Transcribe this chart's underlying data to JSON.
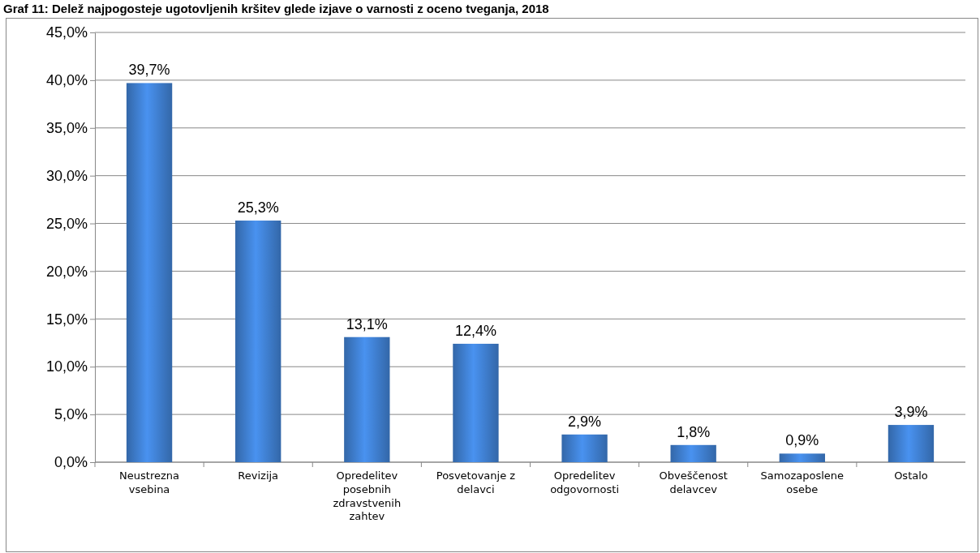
{
  "chart_data": {
    "type": "bar",
    "title": "Graf 11: Delež najpogosteje ugotovljenih kršitev glede izjave o varnosti z oceno tveganja, 2018",
    "categories": [
      "Neustrezna vsebina",
      "Revizija",
      "Opredelitev posebnih zdravstvenih zahtev",
      "Posvetovanje z delavci",
      "Opredelitev odgovornosti",
      "Obveščenost delavcev",
      "Samozaposlene osebe",
      "Ostalo"
    ],
    "values": [
      39.7,
      25.3,
      13.1,
      12.4,
      2.9,
      1.8,
      0.9,
      3.9
    ],
    "value_labels": [
      "39,7%",
      "25,3%",
      "13,1%",
      "12,4%",
      "2,9%",
      "1,8%",
      "0,9%",
      "3,9%"
    ],
    "color": "#3f7fd0",
    "ylim": [
      0,
      45
    ],
    "yticks": [
      {
        "value": 0,
        "label": "0,0%"
      },
      {
        "value": 5,
        "label": "5,0%"
      },
      {
        "value": 10,
        "label": "10,0%"
      },
      {
        "value": 15,
        "label": "15,0%"
      },
      {
        "value": 20,
        "label": "20,0%"
      },
      {
        "value": 25,
        "label": "25,0%"
      },
      {
        "value": 30,
        "label": "30,0%"
      },
      {
        "value": 35,
        "label": "35,0%"
      },
      {
        "value": 40,
        "label": "40,0%"
      },
      {
        "value": 45,
        "label": "45,0%"
      }
    ],
    "grid": "y"
  }
}
